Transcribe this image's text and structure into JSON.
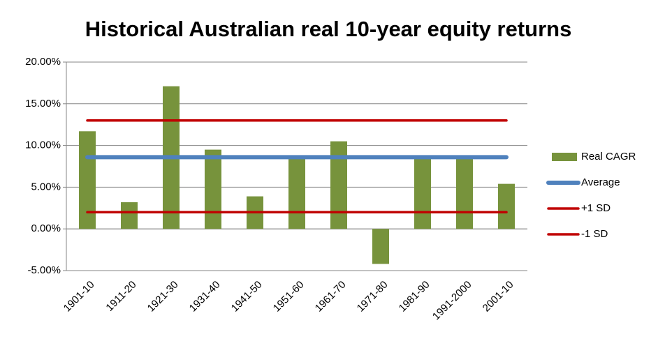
{
  "chart_data": {
    "type": "bar",
    "title": "Historical Australian real 10-year equity returns",
    "categories": [
      "1901-10",
      "1911-20",
      "1921-30",
      "1931-40",
      "1941-50",
      "1951-60",
      "1961-70",
      "1971-80",
      "1981-90",
      "1991-2000",
      "2001-10"
    ],
    "series": [
      {
        "name": "Real CAGR",
        "type": "bar",
        "color": "#77933c",
        "values": [
          11.7,
          3.2,
          17.1,
          9.5,
          3.9,
          8.6,
          10.5,
          -4.2,
          8.5,
          8.4,
          5.4
        ]
      },
      {
        "name": "Average",
        "type": "line",
        "color": "#4f81bd",
        "values": [
          8.6,
          8.6,
          8.6,
          8.6,
          8.6,
          8.6,
          8.6,
          8.6,
          8.6,
          8.6,
          8.6
        ]
      },
      {
        "name": "+1 SD",
        "type": "line",
        "color": "#c00000",
        "values": [
          13.0,
          13.0,
          13.0,
          13.0,
          13.0,
          13.0,
          13.0,
          13.0,
          13.0,
          13.0,
          13.0
        ]
      },
      {
        "name": "-1 SD",
        "type": "line",
        "color": "#c00000",
        "values": [
          2.0,
          2.0,
          2.0,
          2.0,
          2.0,
          2.0,
          2.0,
          2.0,
          2.0,
          2.0,
          2.0
        ]
      }
    ],
    "ylim": [
      -5,
      20
    ],
    "yticks": [
      {
        "value": -5,
        "label": "-5.00%"
      },
      {
        "value": 0,
        "label": "0.00%"
      },
      {
        "value": 5,
        "label": "5.00%"
      },
      {
        "value": 10,
        "label": "10.00%"
      },
      {
        "value": 15,
        "label": "15.00%"
      },
      {
        "value": 20,
        "label": "20.00%"
      }
    ],
    "grid": true,
    "legend": "right"
  }
}
